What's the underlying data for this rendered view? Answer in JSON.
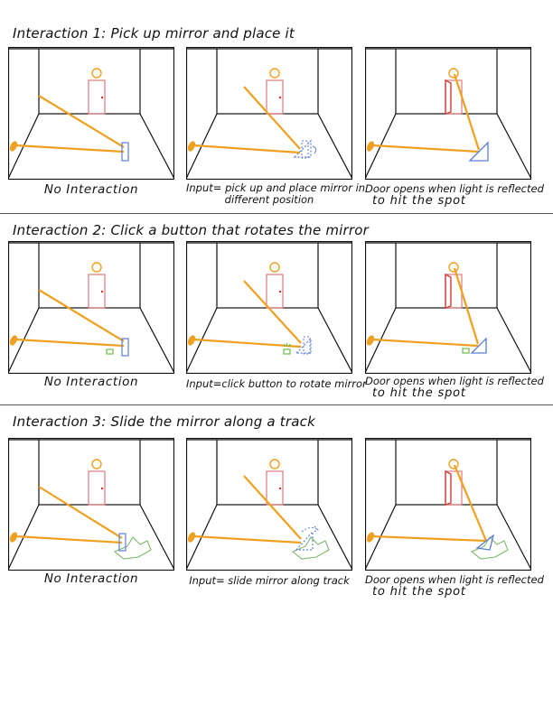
{
  "sections": [
    {
      "title": "Interaction 1: Pick up mirror and place it",
      "captions": [
        [
          "No Interaction"
        ],
        [
          "Input= pick up and place mirror in",
          "different position"
        ],
        [
          "Door opens when light is reflected",
          "to hit the spot"
        ]
      ]
    },
    {
      "title": "Interaction 2: Click a button that rotates the mirror",
      "captions": [
        [
          "No Interaction"
        ],
        [
          "Input=click button to rotate mirror"
        ],
        [
          "Door opens when light is reflected",
          "to hit the spot"
        ]
      ]
    },
    {
      "title": "Interaction 3: Slide the mirror along a track",
      "captions": [
        [
          "No Interaction"
        ],
        [
          "Input= slide mirror along track"
        ],
        [
          "Door opens when light is reflected",
          "to hit the spot"
        ]
      ]
    }
  ],
  "colors": {
    "light_beam": "#f0a020",
    "door": "#e07a7a",
    "target_spot": "#f0a020",
    "mirror": "#5b7fd6",
    "button": "#6cbf4a",
    "track": "#7ab86a",
    "room_lines": "#111111"
  }
}
